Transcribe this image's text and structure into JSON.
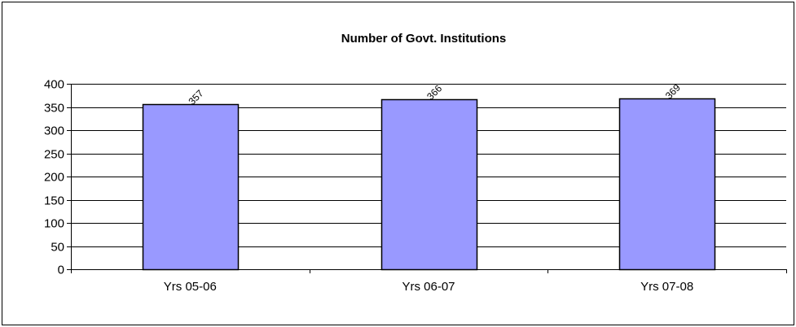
{
  "chart_data": {
    "type": "bar",
    "title": "Number of Govt. Institutions",
    "categories": [
      "Yrs 05-06",
      "Yrs 06-07",
      "Yrs 07-08"
    ],
    "values": [
      357,
      366,
      369
    ],
    "data_labels": [
      "357",
      "366",
      "369"
    ],
    "xlabel": "",
    "ylabel": "",
    "ylim": [
      0,
      400
    ],
    "yticks": [
      0,
      50,
      100,
      150,
      200,
      250,
      300,
      350,
      400
    ],
    "ytick_labels": [
      "0",
      "50",
      "100",
      "150",
      "200",
      "250",
      "300",
      "350",
      "400"
    ],
    "grid": true,
    "legend": "none",
    "colors": {
      "bar_fill": "#9999ff",
      "bar_stroke": "#000000",
      "gridline": "#000000",
      "border": "#000000"
    }
  }
}
